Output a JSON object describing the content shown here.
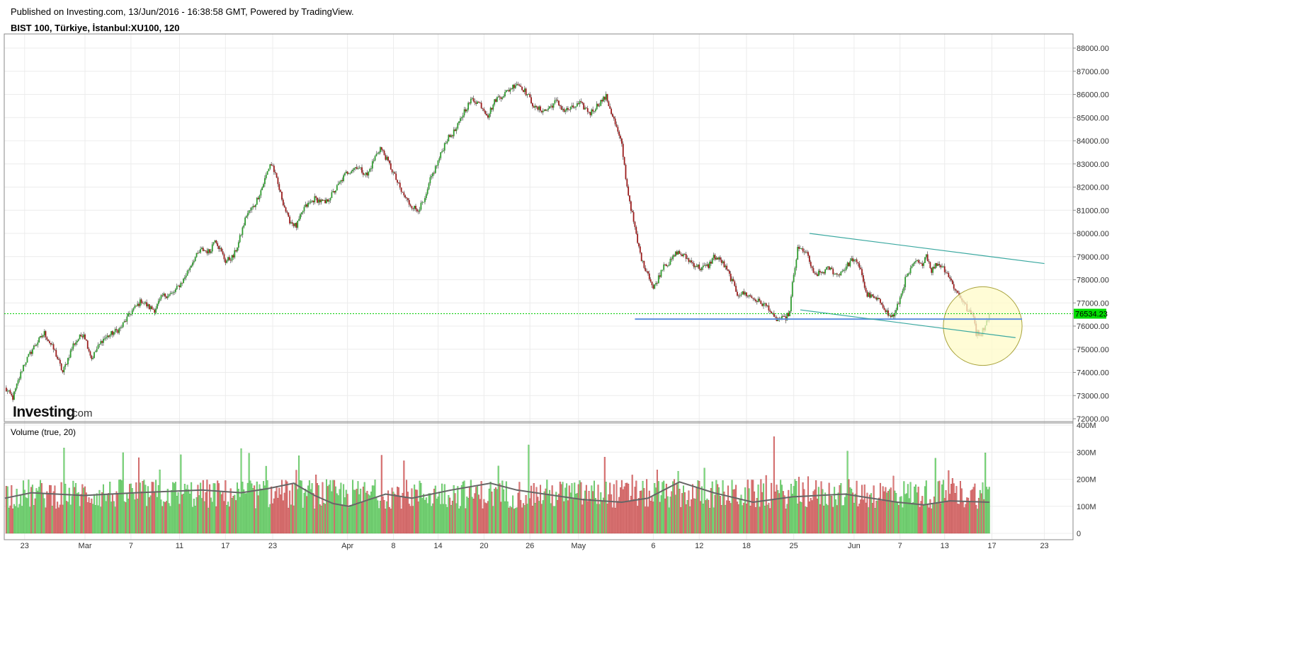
{
  "header": {
    "published": "Published on Investing.com, 13/Jun/2016 - 16:38:58 GMT, Powered by TradingView.",
    "symbol": "BIST 100, Türkiye, İstanbul:XU100, 120"
  },
  "logo": {
    "main": "Investing",
    "sub": ".com"
  },
  "colors": {
    "up": "#2e9b2e",
    "down": "#9b1c1c",
    "vol_up": "#7edc7e",
    "vol_down": "#e07b7b",
    "ma": "#666666",
    "support": "#5b8fe0",
    "channel": "#3aa8a0",
    "highlight_fill": "#fffbc8",
    "highlight_stroke": "#a8a23a",
    "last_price_line": "#00cc00",
    "last_price_tag": "#00dd00"
  },
  "chart_data": [
    {
      "type": "candlestick",
      "title": "BIST 100, Türkiye, İstanbul:XU100, 120",
      "x_tick_labels": [
        "23",
        "Mar",
        "7",
        "11",
        "17",
        "23",
        "Apr",
        "8",
        "14",
        "20",
        "26",
        "May",
        "6",
        "12",
        "18",
        "25",
        "Jun",
        "7",
        "13",
        "17",
        "23"
      ],
      "y_tick_labels": [
        "72000.00",
        "73000.00",
        "74000.00",
        "75000.00",
        "76000.00",
        "77000.00",
        "78000.00",
        "79000.00",
        "80000.00",
        "81000.00",
        "82000.00",
        "83000.00",
        "84000.00",
        "85000.00",
        "86000.00",
        "87000.00",
        "88000.00"
      ],
      "ylim": [
        71900,
        88600
      ],
      "grid": true,
      "last_price": {
        "value": 76534.23,
        "label": "76534.23"
      },
      "close_path": [
        [
          0,
          73300
        ],
        [
          6,
          72900
        ],
        [
          14,
          74300
        ],
        [
          22,
          75100
        ],
        [
          30,
          75700
        ],
        [
          38,
          74900
        ],
        [
          44,
          74000
        ],
        [
          52,
          75200
        ],
        [
          60,
          75700
        ],
        [
          66,
          74600
        ],
        [
          74,
          75400
        ],
        [
          82,
          75700
        ],
        [
          88,
          75900
        ],
        [
          96,
          76600
        ],
        [
          104,
          77100
        ],
        [
          110,
          76800
        ],
        [
          114,
          76700
        ],
        [
          120,
          77300
        ],
        [
          128,
          77400
        ],
        [
          136,
          78000
        ],
        [
          144,
          78900
        ],
        [
          150,
          79300
        ],
        [
          156,
          79200
        ],
        [
          160,
          79800
        ],
        [
          164,
          79300
        ],
        [
          168,
          78800
        ],
        [
          174,
          79000
        ],
        [
          178,
          79600
        ],
        [
          184,
          80800
        ],
        [
          190,
          81200
        ],
        [
          196,
          82000
        ],
        [
          202,
          83000
        ],
        [
          204,
          82900
        ],
        [
          210,
          81700
        ],
        [
          216,
          80600
        ],
        [
          222,
          80300
        ],
        [
          228,
          81100
        ],
        [
          236,
          81500
        ],
        [
          244,
          81300
        ],
        [
          252,
          81900
        ],
        [
          260,
          82600
        ],
        [
          268,
          82900
        ],
        [
          276,
          82500
        ],
        [
          282,
          83300
        ],
        [
          286,
          83700
        ],
        [
          290,
          83300
        ],
        [
          296,
          82600
        ],
        [
          302,
          81800
        ],
        [
          308,
          81300
        ],
        [
          314,
          81000
        ],
        [
          320,
          81400
        ],
        [
          324,
          82300
        ],
        [
          330,
          83100
        ],
        [
          336,
          84000
        ],
        [
          344,
          84500
        ],
        [
          350,
          85300
        ],
        [
          356,
          85800
        ],
        [
          362,
          85600
        ],
        [
          368,
          85100
        ],
        [
          374,
          85800
        ],
        [
          380,
          86000
        ],
        [
          386,
          86300
        ],
        [
          390,
          86500
        ],
        [
          394,
          86300
        ],
        [
          398,
          86000
        ],
        [
          404,
          85400
        ],
        [
          412,
          85300
        ],
        [
          420,
          85700
        ],
        [
          426,
          85300
        ],
        [
          432,
          85400
        ],
        [
          438,
          85600
        ],
        [
          446,
          85200
        ],
        [
          454,
          85700
        ],
        [
          458,
          85900
        ],
        [
          464,
          84900
        ],
        [
          470,
          83800
        ],
        [
          474,
          82000
        ],
        [
          478,
          80800
        ],
        [
          482,
          79600
        ],
        [
          486,
          78700
        ],
        [
          490,
          78300
        ],
        [
          494,
          77600
        ],
        [
          498,
          78100
        ],
        [
          502,
          78700
        ],
        [
          506,
          78700
        ],
        [
          512,
          79200
        ],
        [
          518,
          79000
        ],
        [
          524,
          78700
        ],
        [
          530,
          78500
        ],
        [
          536,
          78600
        ],
        [
          540,
          79000
        ],
        [
          546,
          78800
        ],
        [
          552,
          78200
        ],
        [
          558,
          77400
        ],
        [
          564,
          77400
        ],
        [
          570,
          77200
        ],
        [
          576,
          77000
        ],
        [
          582,
          76800
        ],
        [
          586,
          76300
        ],
        [
          590,
          76300
        ],
        [
          594,
          76300
        ],
        [
          598,
          76600
        ],
        [
          600,
          77800
        ],
        [
          604,
          79300
        ],
        [
          608,
          79300
        ],
        [
          612,
          79000
        ],
        [
          616,
          78200
        ],
        [
          622,
          78300
        ],
        [
          628,
          78500
        ],
        [
          634,
          78200
        ],
        [
          640,
          78500
        ],
        [
          646,
          78900
        ],
        [
          652,
          78500
        ],
        [
          656,
          77400
        ],
        [
          662,
          77200
        ],
        [
          668,
          77000
        ],
        [
          674,
          76400
        ],
        [
          678,
          76500
        ],
        [
          682,
          77200
        ],
        [
          686,
          78000
        ],
        [
          690,
          78400
        ],
        [
          694,
          78800
        ],
        [
          698,
          78600
        ],
        [
          702,
          79100
        ],
        [
          706,
          78400
        ],
        [
          710,
          78700
        ],
        [
          714,
          78600
        ],
        [
          718,
          78300
        ],
        [
          722,
          77800
        ],
        [
          726,
          77400
        ],
        [
          730,
          77100
        ],
        [
          734,
          76600
        ],
        [
          738,
          76500
        ],
        [
          740,
          75700
        ],
        [
          744,
          75700
        ],
        [
          748,
          76200
        ],
        [
          750,
          76530
        ]
      ]
    },
    {
      "type": "bar",
      "title": "Volume (true, 20)",
      "y_tick_labels": [
        "0",
        "100M",
        "200M",
        "300M",
        "400M"
      ],
      "ylim": [
        0,
        400
      ],
      "unit": "M",
      "series": [
        {
          "name": "Volume (true, 20)",
          "values": "one bar per candle, coloured by candle direction"
        }
      ],
      "ma_path": [
        [
          0,
          130
        ],
        [
          20,
          150
        ],
        [
          60,
          140
        ],
        [
          100,
          150
        ],
        [
          150,
          160
        ],
        [
          180,
          150
        ],
        [
          200,
          165
        ],
        [
          220,
          185
        ],
        [
          236,
          140
        ],
        [
          250,
          110
        ],
        [
          262,
          100
        ],
        [
          290,
          145
        ],
        [
          310,
          130
        ],
        [
          340,
          160
        ],
        [
          370,
          185
        ],
        [
          390,
          160
        ],
        [
          440,
          125
        ],
        [
          470,
          115
        ],
        [
          490,
          130
        ],
        [
          514,
          190
        ],
        [
          540,
          150
        ],
        [
          570,
          115
        ],
        [
          600,
          135
        ],
        [
          640,
          145
        ],
        [
          680,
          115
        ],
        [
          700,
          105
        ],
        [
          720,
          120
        ],
        [
          750,
          115
        ]
      ]
    }
  ],
  "drawings": {
    "support_line": {
      "from": [
        480,
        76300
      ],
      "to": [
        775,
        76300
      ]
    },
    "channel_upper": {
      "from": [
        613,
        80000
      ],
      "to": [
        792,
        78700
      ]
    },
    "channel_lower": {
      "from": [
        606,
        76700
      ],
      "to": [
        770,
        75500
      ]
    },
    "highlight_circle": {
      "center": [
        745,
        76000
      ],
      "radius_bars": 30
    }
  }
}
